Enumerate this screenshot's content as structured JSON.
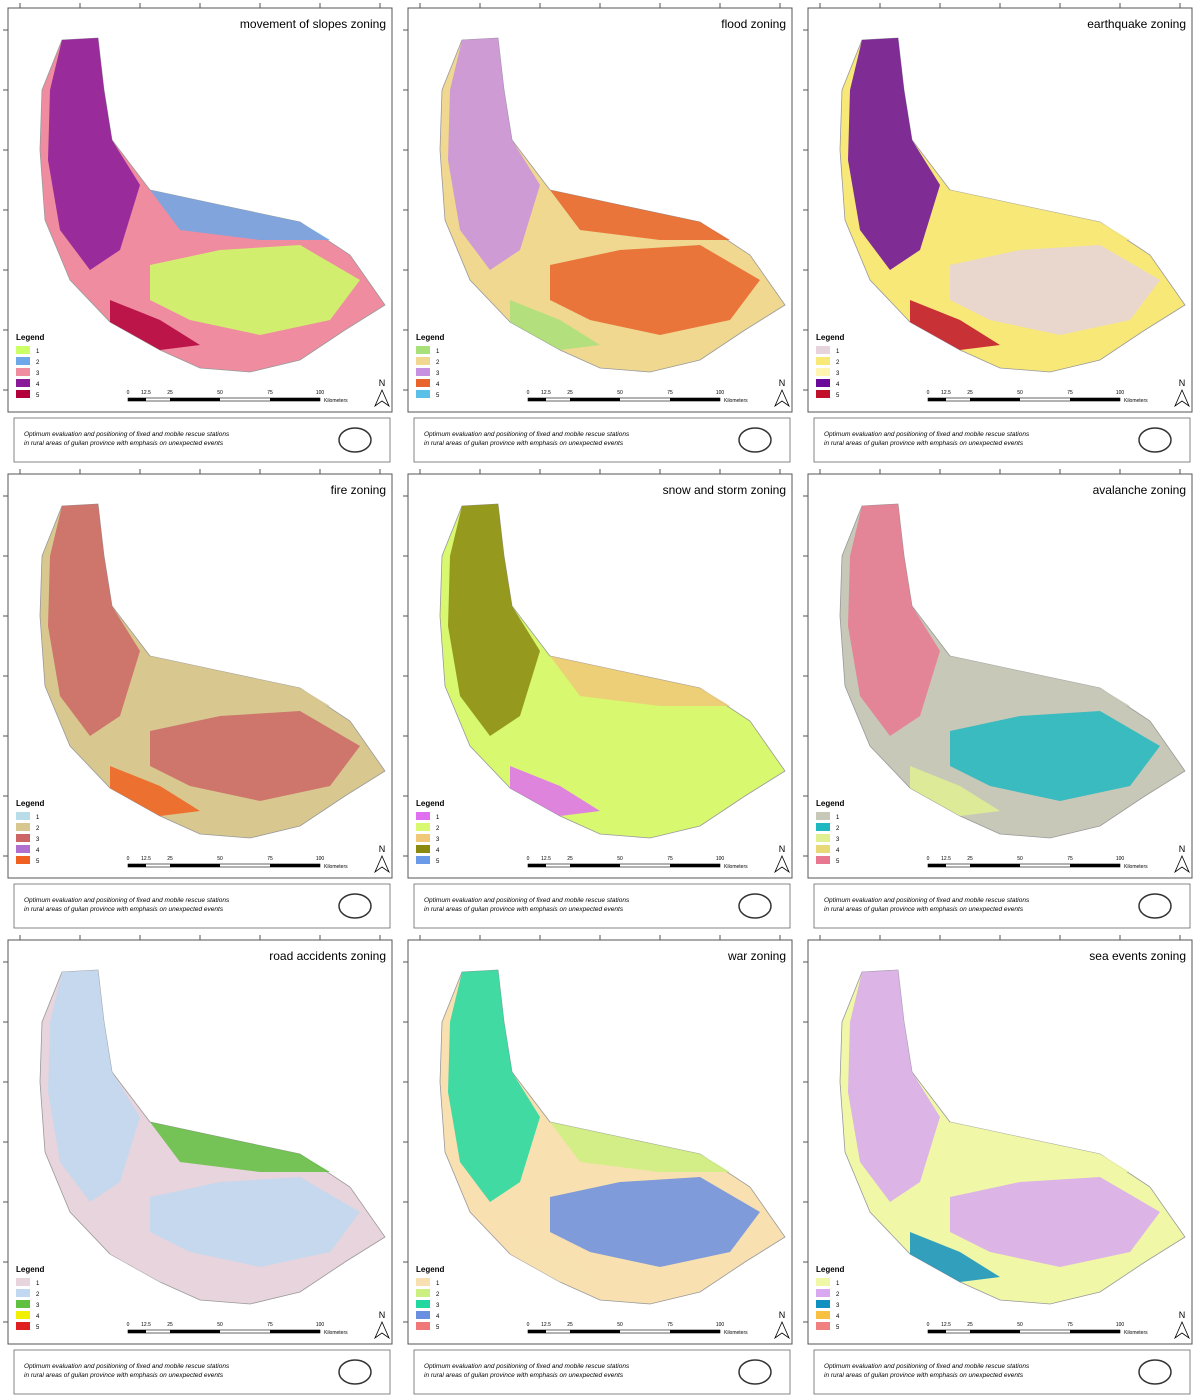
{
  "legend_title": "Legend",
  "north": "N",
  "scale": {
    "labels": [
      0,
      12.5,
      25,
      50,
      75,
      100
    ],
    "unit": "Kilometers"
  },
  "caption": [
    "Optimum evaluation and positioning of fixed and mobile rescue stations",
    "in rural areas of guilan province with emphasis on unexpected events"
  ],
  "panels": [
    {
      "title": "movement of slopes zoning",
      "legend_items": [
        {
          "label": "1",
          "color": "#ccff66"
        },
        {
          "label": "2",
          "color": "#6fa8e8"
        },
        {
          "label": "3",
          "color": "#f08ca0"
        },
        {
          "label": "4",
          "color": "#8b1a9a"
        },
        {
          "label": "5",
          "color": "#b3003b"
        }
      ]
    },
    {
      "title": "flood zoning",
      "legend_items": [
        {
          "label": "1",
          "color": "#a8e07a"
        },
        {
          "label": "2",
          "color": "#f0d890"
        },
        {
          "label": "3",
          "color": "#c890e0"
        },
        {
          "label": "4",
          "color": "#e8642c"
        },
        {
          "label": "5",
          "color": "#5bc0e8"
        }
      ]
    },
    {
      "title": "earthquake zoning",
      "legend_items": [
        {
          "label": "1",
          "color": "#e6d3dc"
        },
        {
          "label": "2",
          "color": "#f8e878"
        },
        {
          "label": "3",
          "color": "#fff4b0"
        },
        {
          "label": "4",
          "color": "#6a0a9a"
        },
        {
          "label": "5",
          "color": "#c0102a"
        }
      ]
    },
    {
      "title": "fire zoning",
      "legend_items": [
        {
          "label": "1",
          "color": "#b8dce8"
        },
        {
          "label": "2",
          "color": "#d8c890"
        },
        {
          "label": "3",
          "color": "#cc6666"
        },
        {
          "label": "4",
          "color": "#b070d0"
        },
        {
          "label": "5",
          "color": "#f06020"
        }
      ]
    },
    {
      "title": "snow and storm zoning",
      "legend_items": [
        {
          "label": "1",
          "color": "#e070f0"
        },
        {
          "label": "2",
          "color": "#d8f870"
        },
        {
          "label": "3",
          "color": "#f0c878"
        },
        {
          "label": "4",
          "color": "#8a8a10"
        },
        {
          "label": "5",
          "color": "#6a9ae8"
        }
      ]
    },
    {
      "title": "avalanche zoning",
      "legend_items": [
        {
          "label": "1",
          "color": "#c8c8b8"
        },
        {
          "label": "2",
          "color": "#20b8c0"
        },
        {
          "label": "3",
          "color": "#e0f090"
        },
        {
          "label": "4",
          "color": "#e8d878"
        },
        {
          "label": "5",
          "color": "#e87890"
        }
      ]
    },
    {
      "title": "road accidents zoning",
      "legend_items": [
        {
          "label": "1",
          "color": "#e8d4dc"
        },
        {
          "label": "2",
          "color": "#c0d8f0"
        },
        {
          "label": "3",
          "color": "#60c040"
        },
        {
          "label": "4",
          "color": "#f0f000"
        },
        {
          "label": "5",
          "color": "#e02020"
        }
      ]
    },
    {
      "title": "war zoning",
      "legend_items": [
        {
          "label": "1",
          "color": "#f8e0b0"
        },
        {
          "label": "2",
          "color": "#ccf080"
        },
        {
          "label": "3",
          "color": "#20d8a0"
        },
        {
          "label": "4",
          "color": "#6a8ee0"
        },
        {
          "label": "5",
          "color": "#f07878"
        }
      ]
    },
    {
      "title": "sea events zoning",
      "legend_items": [
        {
          "label": "1",
          "color": "#f0f8a8"
        },
        {
          "label": "2",
          "color": "#d8a8f0"
        },
        {
          "label": "3",
          "color": "#1090c0"
        },
        {
          "label": "4",
          "color": "#f8c040"
        },
        {
          "label": "5",
          "color": "#f08080"
        }
      ]
    }
  ]
}
